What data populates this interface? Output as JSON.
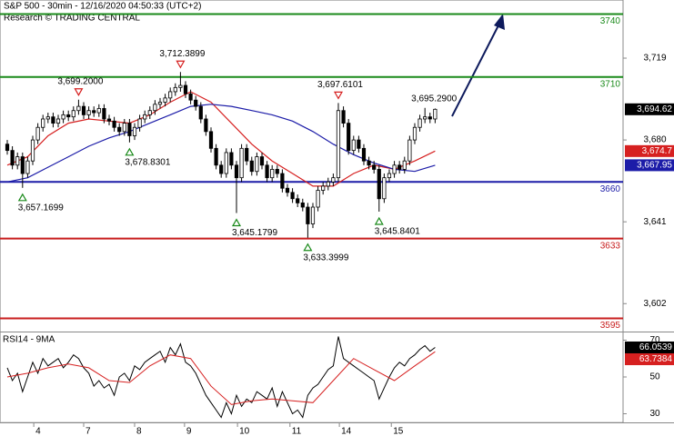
{
  "chart_data": [
    {
      "type": "candlestick",
      "title": "S&P 500 - 30min - 12/16/2020 04:50:33 (UTC+2)",
      "subtitle": "Research © TRADING CENTRAL",
      "xlim": [
        -1.43,
        120.9
      ],
      "ylim": [
        3588.7,
        3746.7
      ],
      "yticks": [
        {
          "value": 3719,
          "label": "3,719"
        },
        {
          "value": 3680,
          "label": "3,680"
        },
        {
          "value": 3641,
          "label": "3,641"
        },
        {
          "value": 3602,
          "label": "3,602"
        }
      ],
      "candle_color": "#000000",
      "x": [
        0,
        1,
        2,
        3,
        4,
        5,
        6,
        7,
        8,
        9,
        10,
        11,
        12,
        13,
        14,
        15,
        16,
        17,
        18,
        19,
        20,
        21,
        22,
        23,
        24,
        25,
        26,
        27,
        28,
        29,
        30,
        31,
        32,
        33,
        34,
        35,
        36,
        37,
        38,
        39,
        40,
        41,
        42,
        43,
        44,
        45,
        46,
        47,
        48,
        49,
        50,
        51,
        52,
        53,
        54,
        55,
        56,
        57,
        58,
        59,
        60,
        61,
        62,
        63,
        64,
        65,
        66,
        67,
        68,
        69,
        70,
        71,
        72,
        73,
        74,
        75,
        76,
        77,
        78,
        79,
        80,
        81,
        82,
        83,
        84
      ],
      "open": [
        3678,
        3675,
        3668,
        3672,
        3664,
        3670,
        3680,
        3686,
        3690,
        3691,
        3688,
        3690,
        3692,
        3691,
        3694,
        3696,
        3692,
        3694,
        3693,
        3695,
        3690,
        3689,
        3686,
        3684,
        3688,
        3682,
        3686,
        3690,
        3692,
        3694,
        3697,
        3698,
        3700,
        3703,
        3705,
        3706,
        3702,
        3699,
        3696,
        3690,
        3684,
        3676,
        3668,
        3664,
        3674,
        3668,
        3662,
        3676,
        3670,
        3665,
        3672,
        3668,
        3662,
        3666,
        3664,
        3657,
        3655,
        3652,
        3650,
        3648,
        3640,
        3648,
        3656,
        3658,
        3660,
        3662,
        3694,
        3688,
        3675,
        3680,
        3676,
        3670,
        3668,
        3666,
        3652,
        3662,
        3664,
        3668,
        3666,
        3670,
        3680,
        3686,
        3690,
        3691,
        3690
      ],
      "high": [
        3680,
        3677,
        3674,
        3674,
        3672,
        3682,
        3688,
        3692,
        3693,
        3693,
        3692,
        3694,
        3694,
        3696,
        3699.2,
        3698,
        3696,
        3696,
        3697,
        3697,
        3692,
        3691,
        3688,
        3690,
        3690,
        3688,
        3692,
        3694,
        3696,
        3699,
        3700,
        3702,
        3705,
        3707,
        3712.39,
        3708,
        3704,
        3701,
        3698,
        3692,
        3686,
        3678,
        3670,
        3676,
        3676,
        3670,
        3678,
        3678,
        3672,
        3674,
        3674,
        3670,
        3668,
        3668,
        3666,
        3659,
        3657,
        3654,
        3652,
        3650,
        3650,
        3658,
        3660,
        3662,
        3664,
        3697.61,
        3696,
        3690,
        3682,
        3682,
        3678,
        3672,
        3670,
        3668,
        3664,
        3666,
        3670,
        3670,
        3672,
        3682,
        3688,
        3692,
        3695.29,
        3693,
        3695
      ],
      "low": [
        3673,
        3666,
        3666,
        3657.17,
        3662,
        3668,
        3678,
        3684,
        3688,
        3686,
        3686,
        3688,
        3689,
        3689,
        3692,
        3690,
        3690,
        3691,
        3691,
        3688,
        3687,
        3684,
        3682,
        3682,
        3678.83,
        3680,
        3684,
        3688,
        3690,
        3692,
        3695,
        3696,
        3698,
        3701,
        3703,
        3700,
        3697,
        3694,
        3688,
        3682,
        3674,
        3666,
        3662,
        3662,
        3666,
        3645.18,
        3660,
        3668,
        3663,
        3663,
        3666,
        3660,
        3660,
        3662,
        3655,
        3653,
        3650,
        3648,
        3646,
        3633.4,
        3638,
        3646,
        3654,
        3656,
        3658,
        3660,
        3686,
        3673,
        3673,
        3674,
        3668,
        3666,
        3664,
        3645.84,
        3650,
        3660,
        3662,
        3664,
        3664,
        3668,
        3678,
        3684,
        3688,
        3688,
        3688
      ],
      "close": [
        3675,
        3668,
        3672,
        3664,
        3670,
        3680,
        3686,
        3690,
        3691,
        3688,
        3690,
        3692,
        3691,
        3694,
        3696,
        3692,
        3694,
        3693,
        3695,
        3690,
        3689,
        3686,
        3684,
        3688,
        3682,
        3686,
        3690,
        3692,
        3694,
        3697,
        3698,
        3700,
        3703,
        3705,
        3706,
        3702,
        3699,
        3696,
        3690,
        3684,
        3676,
        3668,
        3664,
        3674,
        3668,
        3662,
        3676,
        3670,
        3665,
        3672,
        3668,
        3662,
        3666,
        3664,
        3657,
        3655,
        3652,
        3650,
        3648,
        3640,
        3648,
        3656,
        3658,
        3660,
        3662,
        3694,
        3688,
        3675,
        3680,
        3676,
        3670,
        3668,
        3666,
        3652,
        3662,
        3664,
        3668,
        3666,
        3670,
        3680,
        3686,
        3690,
        3691,
        3690,
        3694.62
      ],
      "lines": [
        {
          "color": "#d62020",
          "x": [
            0,
            4,
            8,
            12,
            16,
            20,
            24,
            28,
            32,
            36,
            40,
            44,
            48,
            52,
            56,
            60,
            64,
            68,
            72,
            76,
            80,
            84
          ],
          "values": [
            3668,
            3672,
            3682,
            3688,
            3690,
            3689,
            3688,
            3692,
            3698,
            3703,
            3698,
            3688,
            3678,
            3670,
            3664,
            3658,
            3658,
            3664,
            3668,
            3666,
            3670,
            3674.7
          ]
        },
        {
          "color": "#1c1ca8",
          "x": [
            0,
            4,
            8,
            12,
            16,
            20,
            24,
            28,
            32,
            36,
            40,
            44,
            48,
            52,
            56,
            60,
            64,
            68,
            72,
            76,
            80,
            84
          ],
          "values": [
            3660,
            3662,
            3667,
            3672,
            3677,
            3681,
            3684,
            3688,
            3692,
            3696,
            3697,
            3696,
            3694,
            3692,
            3689,
            3684,
            3678,
            3673,
            3669,
            3666,
            3665,
            3667.95
          ]
        }
      ],
      "levels": [
        {
          "value": 3740,
          "color": "#1a8a1a"
        },
        {
          "value": 3710,
          "color": "#1a8a1a"
        },
        {
          "value": 3660,
          "color": "#1c1ca8"
        },
        {
          "value": 3633,
          "color": "#c81e1e"
        },
        {
          "value": 3595,
          "color": "#c81e1e"
        }
      ],
      "annotations": [
        {
          "x": 3,
          "value": 3657.17,
          "label": "3,657.1699",
          "marker": "up"
        },
        {
          "x": 14,
          "value": 3699.2,
          "label": "3,699.2000",
          "marker": "down"
        },
        {
          "x": 24,
          "value": 3678.83,
          "label": "3,678.8301",
          "marker": "up"
        },
        {
          "x": 34,
          "value": 3712.39,
          "label": "3,712.3899",
          "marker": "down"
        },
        {
          "x": 45,
          "value": 3645.18,
          "label": "3,645.1799",
          "marker": "up"
        },
        {
          "x": 59,
          "value": 3633.4,
          "label": "3,633.3999",
          "marker": "up"
        },
        {
          "x": 65,
          "value": 3697.61,
          "label": "3,697.6101",
          "marker": "down"
        },
        {
          "x": 73,
          "value": 3645.84,
          "label": "3,645.8401",
          "marker": "up"
        },
        {
          "x": 82,
          "value": 3695.29,
          "label": "3,695.2900",
          "marker": "none"
        }
      ],
      "price_tags": [
        {
          "value": 3694.62,
          "label": "3,694.62",
          "color": "#000000"
        },
        {
          "value": 3674.7,
          "label": "3,674.7",
          "color": "#d62020"
        },
        {
          "value": 3667.95,
          "label": "3,667.95",
          "color": "#1c1ca8"
        }
      ]
    },
    {
      "type": "line",
      "title": "RSI14 - 9MA",
      "xlim": [
        -1.43,
        120.9
      ],
      "ylim": [
        25.3,
        74.2
      ],
      "yticks": [
        70,
        50,
        30
      ],
      "xticks": [
        {
          "value": 5.2,
          "label": "4"
        },
        {
          "value": 15,
          "label": "7"
        },
        {
          "value": 25,
          "label": "8"
        },
        {
          "value": 34.8,
          "label": "9"
        },
        {
          "value": 45.2,
          "label": "10"
        },
        {
          "value": 55.5,
          "label": "11"
        },
        {
          "value": 65.2,
          "label": "14"
        },
        {
          "value": 75.4,
          "label": "15"
        }
      ],
      "series": [
        {
          "color": "#000000",
          "x": [
            0,
            1,
            2,
            3,
            4,
            5,
            6,
            7,
            8,
            9,
            10,
            11,
            12,
            13,
            14,
            15,
            16,
            17,
            18,
            19,
            20,
            21,
            22,
            23,
            24,
            25,
            26,
            27,
            28,
            29,
            30,
            31,
            32,
            33,
            34,
            35,
            36,
            37,
            38,
            39,
            40,
            41,
            42,
            43,
            44,
            45,
            46,
            47,
            48,
            49,
            50,
            51,
            52,
            53,
            54,
            55,
            56,
            57,
            58,
            59,
            60,
            61,
            62,
            63,
            64,
            65,
            66,
            67,
            68,
            69,
            70,
            71,
            72,
            73,
            74,
            75,
            76,
            77,
            78,
            79,
            80,
            81,
            82,
            83,
            84
          ],
          "values": [
            55,
            48,
            52,
            42,
            50,
            58,
            52,
            60,
            56,
            58,
            60,
            55,
            58,
            62,
            60,
            55,
            52,
            45,
            48,
            44,
            46,
            40,
            50,
            52,
            48,
            56,
            54,
            58,
            60,
            62,
            64,
            58,
            66,
            62,
            68,
            58,
            56,
            52,
            46,
            40,
            36,
            32,
            28,
            36,
            30,
            40,
            34,
            38,
            36,
            42,
            40,
            38,
            44,
            34,
            42,
            36,
            30,
            32,
            28,
            40,
            44,
            46,
            50,
            54,
            56,
            72,
            60,
            58,
            56,
            54,
            52,
            50,
            48,
            38,
            44,
            50,
            55,
            58,
            56,
            60,
            62,
            65,
            67,
            64,
            66.05
          ]
        },
        {
          "color": "#d62020",
          "x": [
            0,
            4,
            8,
            12,
            16,
            20,
            24,
            28,
            32,
            36,
            40,
            44,
            48,
            52,
            56,
            60,
            64,
            68,
            72,
            76,
            80,
            84
          ],
          "values": [
            50,
            52,
            55,
            57,
            55,
            48,
            47,
            56,
            62,
            60,
            45,
            35,
            37,
            38,
            37,
            36,
            48,
            60,
            54,
            48,
            56,
            63.74
          ]
        }
      ],
      "price_tags": [
        {
          "value": 66.0539,
          "label": "66.0539",
          "color": "#000000"
        },
        {
          "value": 63.7384,
          "label": "63.7384",
          "color": "#d62020"
        }
      ]
    }
  ]
}
